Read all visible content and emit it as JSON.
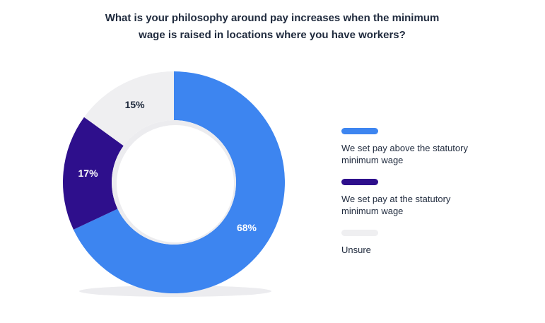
{
  "chart_data": {
    "type": "donut",
    "title": "What is your philosophy around pay increases when the minimum wage is raised in locations where you have workers?",
    "legend": "right",
    "series": [
      {
        "name": "We set pay above the statutory minimum wage",
        "color": "#3d85f0"
      },
      {
        "name": "We set pay at the statutory minimum wage",
        "color": "#2e0f8c"
      },
      {
        "name": "Unsure",
        "color": "#efeff1"
      }
    ],
    "values": [
      68,
      17,
      15
    ],
    "value_labels": [
      "68%",
      "17%",
      "15%"
    ]
  }
}
